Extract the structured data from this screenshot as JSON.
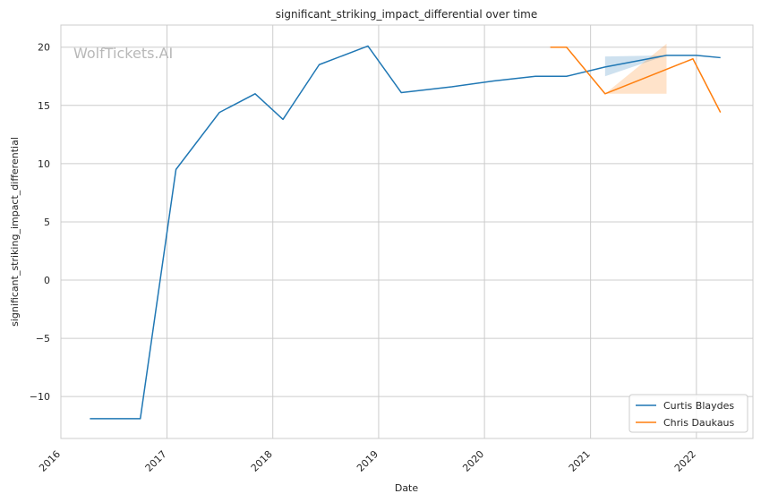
{
  "chart_data": {
    "type": "line",
    "title": "significant_striking_impact_differential over time",
    "xlabel": "Date",
    "ylabel": "significant_striking_impact_differential",
    "watermark": "WolfTickets.AI",
    "xlim": [
      "2016-01-01",
      "2022-07-15"
    ],
    "ylim": [
      -13.6,
      21.9
    ],
    "x_ticks": [
      "2016",
      "2017",
      "2018",
      "2019",
      "2020",
      "2021",
      "2022"
    ],
    "y_ticks": [
      -10,
      -5,
      0,
      5,
      10,
      15,
      20
    ],
    "y_tick_labels": [
      "−10",
      "−5",
      "0",
      "5",
      "10",
      "15",
      "20"
    ],
    "grid": true,
    "legend_position": "bottom-right",
    "series": [
      {
        "name": "Curtis Blaydes",
        "color": "#1f77b4",
        "points": [
          [
            "2016-04-10",
            -11.9
          ],
          [
            "2016-10-01",
            -11.9
          ],
          [
            "2017-02-01",
            9.5
          ],
          [
            "2017-07-01",
            14.4
          ],
          [
            "2017-11-01",
            16.0
          ],
          [
            "2018-02-05",
            13.8
          ],
          [
            "2018-06-10",
            18.5
          ],
          [
            "2018-11-25",
            20.1
          ],
          [
            "2019-03-20",
            16.1
          ],
          [
            "2019-09-10",
            16.6
          ],
          [
            "2020-02-01",
            17.1
          ],
          [
            "2020-06-25",
            17.5
          ],
          [
            "2020-10-10",
            17.5
          ],
          [
            "2021-02-20",
            18.3
          ],
          [
            "2021-09-20",
            19.3
          ],
          [
            "2022-01-01",
            19.3
          ],
          [
            "2022-03-25",
            19.1
          ]
        ],
        "band": [
          [
            "2021-02-20",
            17.5,
            19.2
          ],
          [
            "2021-09-20",
            19.3,
            19.3
          ]
        ]
      },
      {
        "name": "Chris Daukaus",
        "color": "#ff7f0e",
        "points": [
          [
            "2020-08-15",
            20.0
          ],
          [
            "2020-10-10",
            20.0
          ],
          [
            "2021-02-20",
            16.0
          ],
          [
            "2021-12-20",
            19.0
          ],
          [
            "2022-03-25",
            14.4
          ]
        ],
        "band": [
          [
            "2021-02-20",
            16.0,
            16.0
          ],
          [
            "2021-09-20",
            16.0,
            20.3
          ]
        ]
      }
    ]
  }
}
